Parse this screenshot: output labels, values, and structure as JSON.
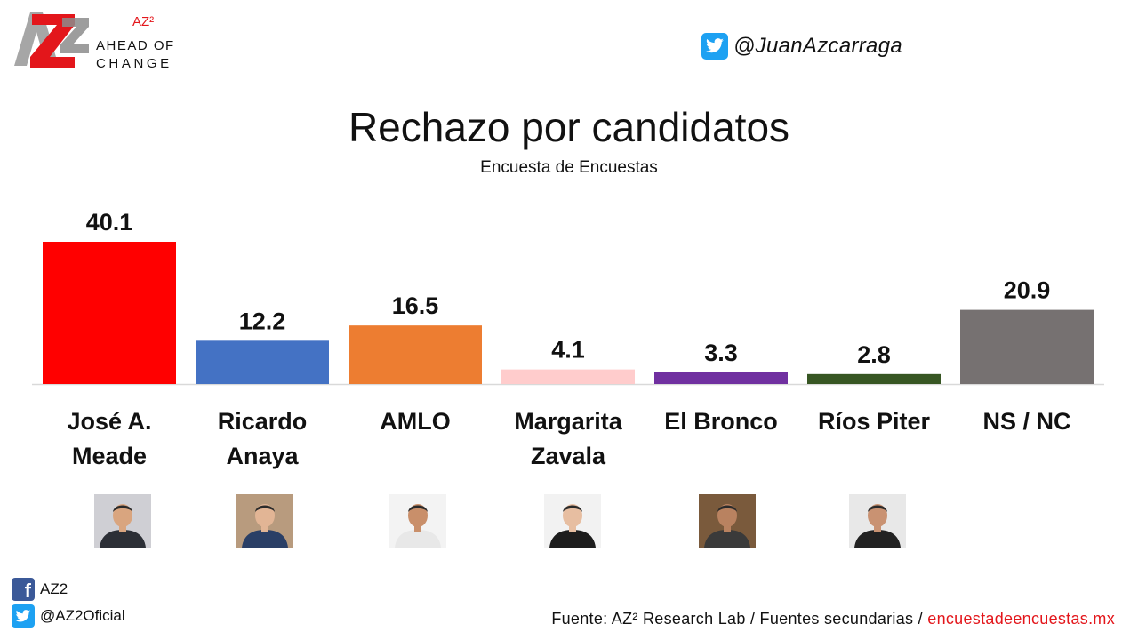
{
  "brand": {
    "logo_mark": "AZ2",
    "superscript": "AZ²",
    "line1": "AHEAD OF",
    "line2": "CHANGE"
  },
  "top_twitter": {
    "icon": "twitter-icon",
    "handle": "@JuanAzcarraga"
  },
  "chart_data": {
    "type": "bar",
    "title": "Rechazo por candidatos",
    "subtitle": "Encuesta de Encuestas",
    "categories": [
      "José A. Meade",
      "Ricardo Anaya",
      "AMLO",
      "Margarita Zavala",
      "El Bronco",
      "Ríos Piter",
      "NS / NC"
    ],
    "category_lines": [
      [
        "José A.",
        "Meade"
      ],
      [
        "Ricardo",
        "Anaya"
      ],
      [
        "AMLO"
      ],
      [
        "Margarita",
        "Zavala"
      ],
      [
        "El Bronco"
      ],
      [
        "Ríos Piter"
      ],
      [
        "NS / NC"
      ]
    ],
    "values": [
      40.1,
      12.2,
      16.5,
      4.1,
      3.3,
      2.8,
      20.9
    ],
    "value_labels": [
      "40.1",
      "12.2",
      "16.5",
      "4.1",
      "3.3",
      "2.8",
      "20.9"
    ],
    "colors": [
      "#ff0000",
      "#4472c4",
      "#ed7d31",
      "#ffcccc",
      "#7030a0",
      "#375623",
      "#767171"
    ],
    "ylim": [
      0,
      40.1
    ],
    "grid": false,
    "legend": "none"
  },
  "photos": [
    {
      "name": "photo-jose-a-meade",
      "shirt": "#2c2f36",
      "skin": "#d9a57f",
      "bg": "#cfcfd4"
    },
    {
      "name": "photo-ricardo-anaya",
      "shirt": "#2a3f66",
      "skin": "#e2b595",
      "bg": "#b89b7e"
    },
    {
      "name": "photo-amlo",
      "shirt": "#e8e8e8",
      "skin": "#c98f6a",
      "bg": "#f3f3f3"
    },
    {
      "name": "photo-margarita-zavala",
      "shirt": "#1d1d1d",
      "skin": "#e7bea1",
      "bg": "#f2f2f2"
    },
    {
      "name": "photo-el-bronco",
      "shirt": "#3a3a3a",
      "skin": "#b98260",
      "bg": "#7a5a3c"
    },
    {
      "name": "photo-rios-piter",
      "shirt": "#222222",
      "skin": "#c99272",
      "bg": "#e8e8e8"
    }
  ],
  "social": {
    "facebook": {
      "icon": "facebook-icon",
      "label": "AZ2"
    },
    "twitter": {
      "icon": "twitter-icon",
      "label": "@AZ2Oficial"
    }
  },
  "source": {
    "prefix": "Fuente: AZ² Research Lab / Fuentes secundarias /",
    "link": "encuestadeencuestas.mx"
  }
}
